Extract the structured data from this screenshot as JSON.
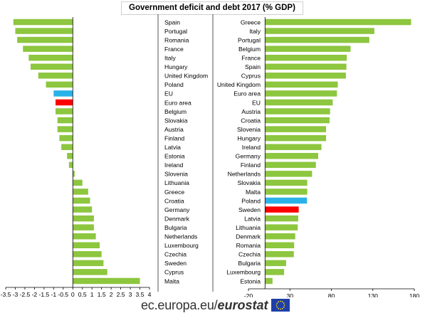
{
  "title": "Government deficit and debt 2017 (% GDP)",
  "footer": {
    "site": "ec.europa.eu/",
    "brand": "eurostat"
  },
  "colors": {
    "default": "#8dc63f",
    "eu": "#29b2e8",
    "highlight": "#ff0000",
    "axis": "#000000"
  },
  "chart_data": [
    {
      "type": "bar",
      "orientation": "horizontal",
      "name": "deficit",
      "categories": [
        "Spain",
        "Portugal",
        "Romania",
        "France",
        "Italy",
        "Hungary",
        "United Kingdom",
        "Poland",
        "EU",
        "Euro area",
        "Belgium",
        "Slovakia",
        "Austria",
        "Finland",
        "Latvia",
        "Estonia",
        "Ireland",
        "Slovenia",
        "Lithuania",
        "Greece",
        "Croatia",
        "Germany",
        "Denmark",
        "Bulgaria",
        "Netherlands",
        "Luxembourg",
        "Czechia",
        "Sweden",
        "Cyprus",
        "Malta"
      ],
      "values": [
        -3.1,
        -3.0,
        -2.9,
        -2.6,
        -2.3,
        -2.2,
        -1.8,
        -1.4,
        -1.0,
        -0.9,
        -0.9,
        -0.8,
        -0.8,
        -0.7,
        -0.6,
        -0.3,
        -0.2,
        0.1,
        0.5,
        0.8,
        0.9,
        1.0,
        1.1,
        1.1,
        1.2,
        1.4,
        1.5,
        1.6,
        1.8,
        3.5
      ],
      "bar_colors": {
        "EU": "eu",
        "Euro area": "highlight"
      },
      "xlim": [
        -3.5,
        4
      ],
      "xticks": [
        "-3.5",
        "-3",
        "-2.5",
        "-2",
        "-1.5",
        "-1",
        "-0.5",
        "0",
        "0.5",
        "1",
        "1.5",
        "2",
        "2.5",
        "3",
        "3.5",
        "4"
      ],
      "xtick_values": [
        -3.5,
        -3,
        -2.5,
        -2,
        -1.5,
        -1,
        -0.5,
        0,
        0.5,
        1,
        1.5,
        2,
        2.5,
        3,
        3.5,
        4
      ],
      "label_position": "right-of-plot",
      "grid": false
    },
    {
      "type": "bar",
      "orientation": "horizontal",
      "name": "debt",
      "categories": [
        "Greece",
        "Italy",
        "Portugal",
        "Belgium",
        "France",
        "Spain",
        "Cyprus",
        "United Kingdom",
        "Euro area",
        "EU",
        "Austria",
        "Croatia",
        "Slovenia",
        "Hungary",
        "Ireland",
        "Germany",
        "Finland",
        "Netherlands",
        "Slovakia",
        "Malta",
        "Poland",
        "Sweden",
        "Latvia",
        "Lithuania",
        "Denmark",
        "Romania",
        "Czechia",
        "Bulgaria",
        "Luxembourg",
        "Estonia"
      ],
      "values": [
        176.1,
        131.8,
        125.7,
        103.1,
        98.5,
        98.1,
        97.5,
        87.7,
        86.7,
        81.6,
        78.4,
        77.8,
        73.6,
        73.6,
        68.0,
        64.1,
        61.3,
        56.7,
        50.9,
        50.9,
        50.6,
        40.6,
        40.0,
        39.4,
        36.4,
        35.1,
        34.7,
        25.4,
        23.0,
        9.0
      ],
      "bar_colors": {
        "Poland": "eu",
        "Sweden": "highlight"
      },
      "xlim": [
        -20,
        180
      ],
      "xticks": [
        "-20",
        "30",
        "80",
        "130",
        "180"
      ],
      "xtick_values": [
        -20,
        30,
        80,
        130,
        180
      ],
      "label_position": "left-of-plot",
      "grid": false
    }
  ]
}
